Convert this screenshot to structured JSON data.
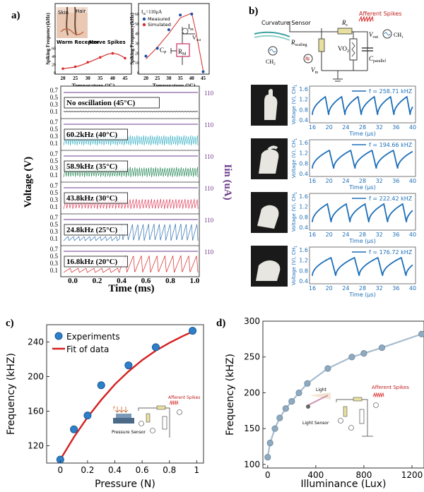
{
  "panel_labels": {
    "a": "a)",
    "b": "b)",
    "c": "c)",
    "d": "d)"
  },
  "a_left_inset": {
    "ylabel": "Spiking Frequency(kHz)",
    "xlabel": "Temperature (°C)",
    "xticks": [
      "20",
      "25",
      "30",
      "35",
      "40",
      "45"
    ],
    "yticks": [
      "0",
      "20",
      "40",
      "60"
    ],
    "labels": {
      "skin": "Skin",
      "hair": "Hair",
      "warm": "Warm Receptor",
      "nerve": "Nerve Spikes"
    }
  },
  "a_right_inset": {
    "ylabel": "Spiking Frequency(kHz)",
    "xlabel": "Temperature (°C)",
    "xticks": [
      "20",
      "25",
      "30",
      "35",
      "40",
      "45"
    ],
    "yticks": [
      "0",
      "10",
      "20",
      "30",
      "40",
      "50",
      "60"
    ],
    "title": "I",
    "title_sub": "in",
    "title_rest": "=110μA",
    "legend": [
      "Measured",
      "Simulated"
    ],
    "circuit": {
      "iin": "I",
      "iin_sub": "in",
      "vout": "V",
      "vout_sub": "out",
      "cp": "C",
      "cp_sub": "P",
      "rm": "R",
      "rm_sub": "M"
    }
  },
  "a_main": {
    "ylabel": "Voltage (V)",
    "ylabel_right": "Iin (uA)",
    "xlabel": "Time (ms)",
    "xticks": [
      "0.0",
      "0.2",
      "0.4",
      "0.6",
      "0.8",
      "1.0"
    ],
    "yticks": [
      "0.7",
      "0.5",
      "0.3",
      "0.1"
    ],
    "right_tick": "110",
    "traces": [
      {
        "label": "No oscillation (45°C)",
        "color": "#222222"
      },
      {
        "label": "60.2kHz (40°C)",
        "color": "#3fb3c8"
      },
      {
        "label": "58.9kHz (35°C)",
        "color": "#2a8a5a"
      },
      {
        "label": "43.8kHz (30°C)",
        "color": "#e0405a"
      },
      {
        "label": "24.8kHz (25°C)",
        "color": "#2d6fb0"
      },
      {
        "label": "16.8kHz (20°C)",
        "color": "#d42020"
      }
    ]
  },
  "b_circuit": {
    "curvature": "Curvature Sensor",
    "rc": "R",
    "rc_sub": "c",
    "afferent": "Afferent Spikes",
    "rscaling": "R",
    "rscaling_sub": "scaling",
    "vout": "V",
    "vout_sub": "out",
    "ch1": "CH",
    "ch1_sub": "1",
    "ch2": "CH",
    "ch2_sub": "2",
    "vo2": "VO",
    "vo2_sub": "2",
    "cparallel": "C",
    "cparallel_sub": "parallel",
    "vin": "V",
    "vin_sub": "in"
  },
  "b_plots": {
    "ylabel": "Voltage (V), CH",
    "ylabel_sub": "1",
    "xlabel": "Time (μs)",
    "xticks": [
      "16",
      "20",
      "24",
      "28",
      "32",
      "36",
      "40"
    ],
    "yticks": [
      "1.6",
      "1.2",
      "0.8",
      "0.4"
    ],
    "freqs": [
      "f = 258.71 kHZ",
      "f = 194.66 kHZ",
      "f = 222.42 kHZ",
      "f = 176.72 kHZ"
    ]
  },
  "chart_data": [
    {
      "type": "scatter",
      "title": "",
      "xlabel": "Pressure (N)",
      "ylabel": "Frequency (kHZ)",
      "xlim": [
        -0.1,
        1.05
      ],
      "ylim": [
        100,
        260
      ],
      "xticks": [
        "0",
        "0.2",
        "0.4",
        "0.6",
        "0.8",
        "1"
      ],
      "yticks": [
        "120",
        "160",
        "200",
        "240"
      ],
      "legend": [
        "Experiments",
        "Fit of data"
      ],
      "series": [
        {
          "name": "Experiments",
          "x": [
            0,
            0.1,
            0.2,
            0.3,
            0.5,
            0.7,
            0.97
          ],
          "y": [
            104,
            139,
            155,
            190,
            213,
            234,
            253
          ]
        },
        {
          "name": "Fit of data",
          "x": [
            0,
            0.1,
            0.2,
            0.3,
            0.4,
            0.5,
            0.6,
            0.7,
            0.8,
            0.9,
            0.97
          ],
          "y": [
            104,
            130,
            153,
            173,
            191,
            206,
            219,
            230,
            239,
            247,
            252
          ]
        }
      ],
      "inset_labels": {
        "pressure_sensor": "Pressure Sensor",
        "afferent": "Afferent Spikes",
        "f": "F"
      }
    },
    {
      "type": "line",
      "title": "",
      "xlabel": "Illuminance (Lux)",
      "ylabel": "Frequency (kHZ)",
      "xlim": [
        -40,
        1300
      ],
      "ylim": [
        95,
        300
      ],
      "xticks": [
        "0",
        "400",
        "800",
        "1200"
      ],
      "yticks": [
        "100",
        "150",
        "200",
        "250",
        "300"
      ],
      "series": [
        {
          "name": "Frequency",
          "x": [
            0,
            20,
            60,
            100,
            150,
            200,
            260,
            330,
            500,
            700,
            800,
            950,
            1280
          ],
          "y": [
            110,
            130,
            150,
            165,
            178,
            188,
            200,
            213,
            234,
            250,
            255,
            263,
            282
          ]
        }
      ],
      "inset_labels": {
        "light": "Light",
        "light_sensor": "Light Sensor",
        "afferent": "Afferent Spikes"
      }
    }
  ]
}
